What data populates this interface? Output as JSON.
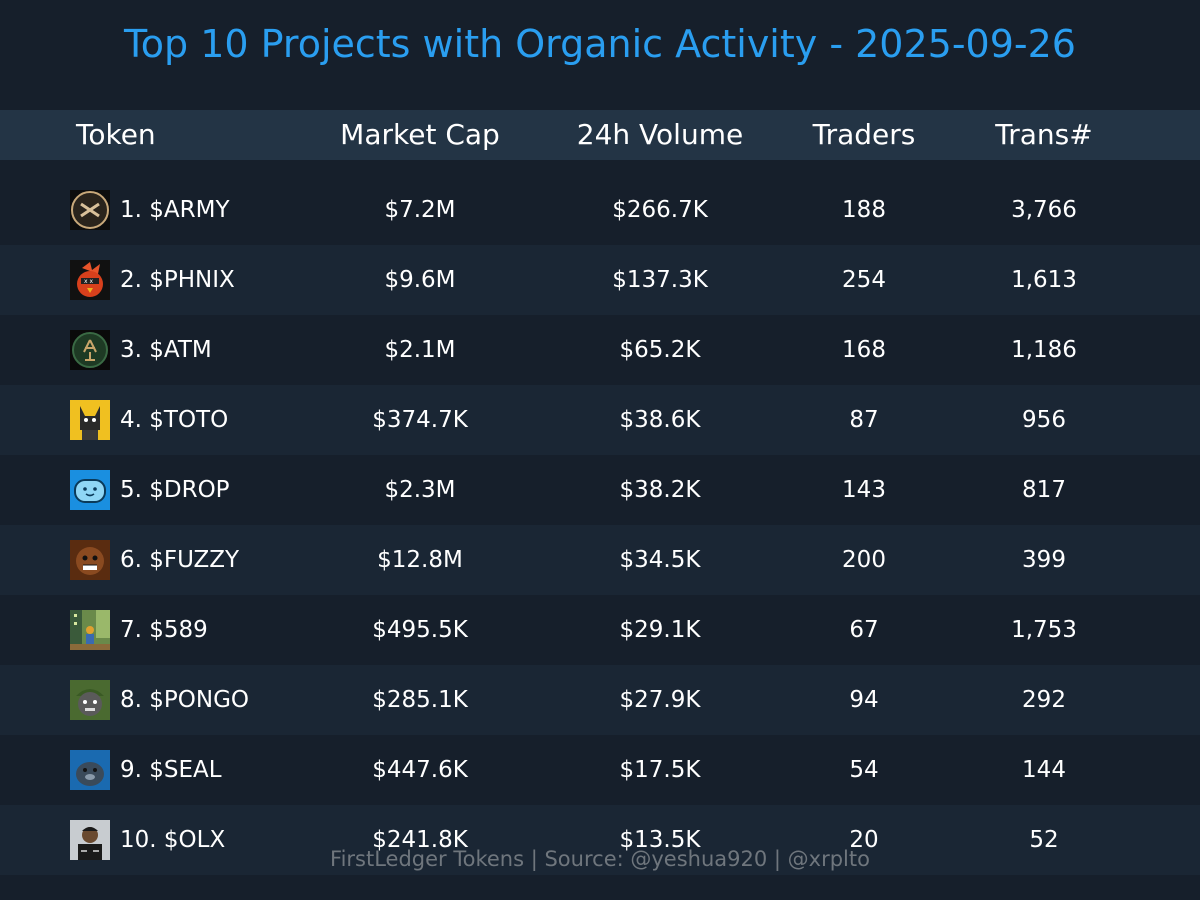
{
  "title": "Top 10 Projects with Organic Activity - 2025-09-26",
  "columns": {
    "token": "Token",
    "market_cap": "Market Cap",
    "volume": "24h Volume",
    "traders": "Traders",
    "transactions": "Trans#"
  },
  "rows": [
    {
      "token": "1. $ARMY",
      "market_cap": "$7.2M",
      "volume": "$266.7K",
      "traders": "188",
      "transactions": "3,766",
      "logo_icon": "army-logo-icon"
    },
    {
      "token": "2. $PHNIX",
      "market_cap": "$9.6M",
      "volume": "$137.3K",
      "traders": "254",
      "transactions": "1,613",
      "logo_icon": "phnix-logo-icon"
    },
    {
      "token": "3. $ATM",
      "market_cap": "$2.1M",
      "volume": "$65.2K",
      "traders": "168",
      "transactions": "1,186",
      "logo_icon": "atm-logo-icon"
    },
    {
      "token": "4. $TOTO",
      "market_cap": "$374.7K",
      "volume": "$38.6K",
      "traders": "87",
      "transactions": "956",
      "logo_icon": "toto-logo-icon"
    },
    {
      "token": "5. $DROP",
      "market_cap": "$2.3M",
      "volume": "$38.2K",
      "traders": "143",
      "transactions": "817",
      "logo_icon": "drop-logo-icon"
    },
    {
      "token": "6. $FUZZY",
      "market_cap": "$12.8M",
      "volume": "$34.5K",
      "traders": "200",
      "transactions": "399",
      "logo_icon": "fuzzy-logo-icon"
    },
    {
      "token": "7. $589",
      "market_cap": "$495.5K",
      "volume": "$29.1K",
      "traders": "67",
      "transactions": "1,753",
      "logo_icon": "589-logo-icon"
    },
    {
      "token": "8. $PONGO",
      "market_cap": "$285.1K",
      "volume": "$27.9K",
      "traders": "94",
      "transactions": "292",
      "logo_icon": "pongo-logo-icon"
    },
    {
      "token": "9. $SEAL",
      "market_cap": "$447.6K",
      "volume": "$17.5K",
      "traders": "54",
      "transactions": "144",
      "logo_icon": "seal-logo-icon"
    },
    {
      "token": "10. $OLX",
      "market_cap": "$241.8K",
      "volume": "$13.5K",
      "traders": "20",
      "transactions": "52",
      "logo_icon": "olx-logo-icon"
    }
  ],
  "footer": "FirstLedger Tokens | Source: @yeshua920 | @xrplto",
  "colors": {
    "background": "#161f2b",
    "row_alt": "#1a2634",
    "header_bg": "#233445",
    "title": "#2a9ef0",
    "text": "#ffffff",
    "footer_text": "#6f767d"
  }
}
